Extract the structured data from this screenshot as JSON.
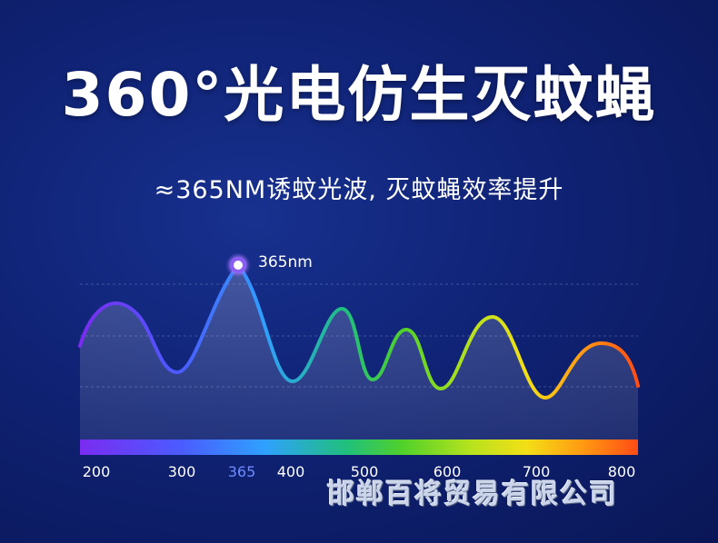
{
  "headline": "360°光电仿生灭蚊蝇",
  "subline": "≈365NM诱蚊光波, 灭蚊蝇效率提升",
  "peak_label": "365nm",
  "watermark": "邯郸百将贸易有限公司",
  "spectrum": {
    "ticks": [
      "200",
      "300",
      "365",
      "400",
      "500",
      "600",
      "700",
      "800"
    ],
    "highlight_tick": "365"
  },
  "colors": {
    "background": "#0f2274",
    "highlight": "#6f8cff"
  }
}
